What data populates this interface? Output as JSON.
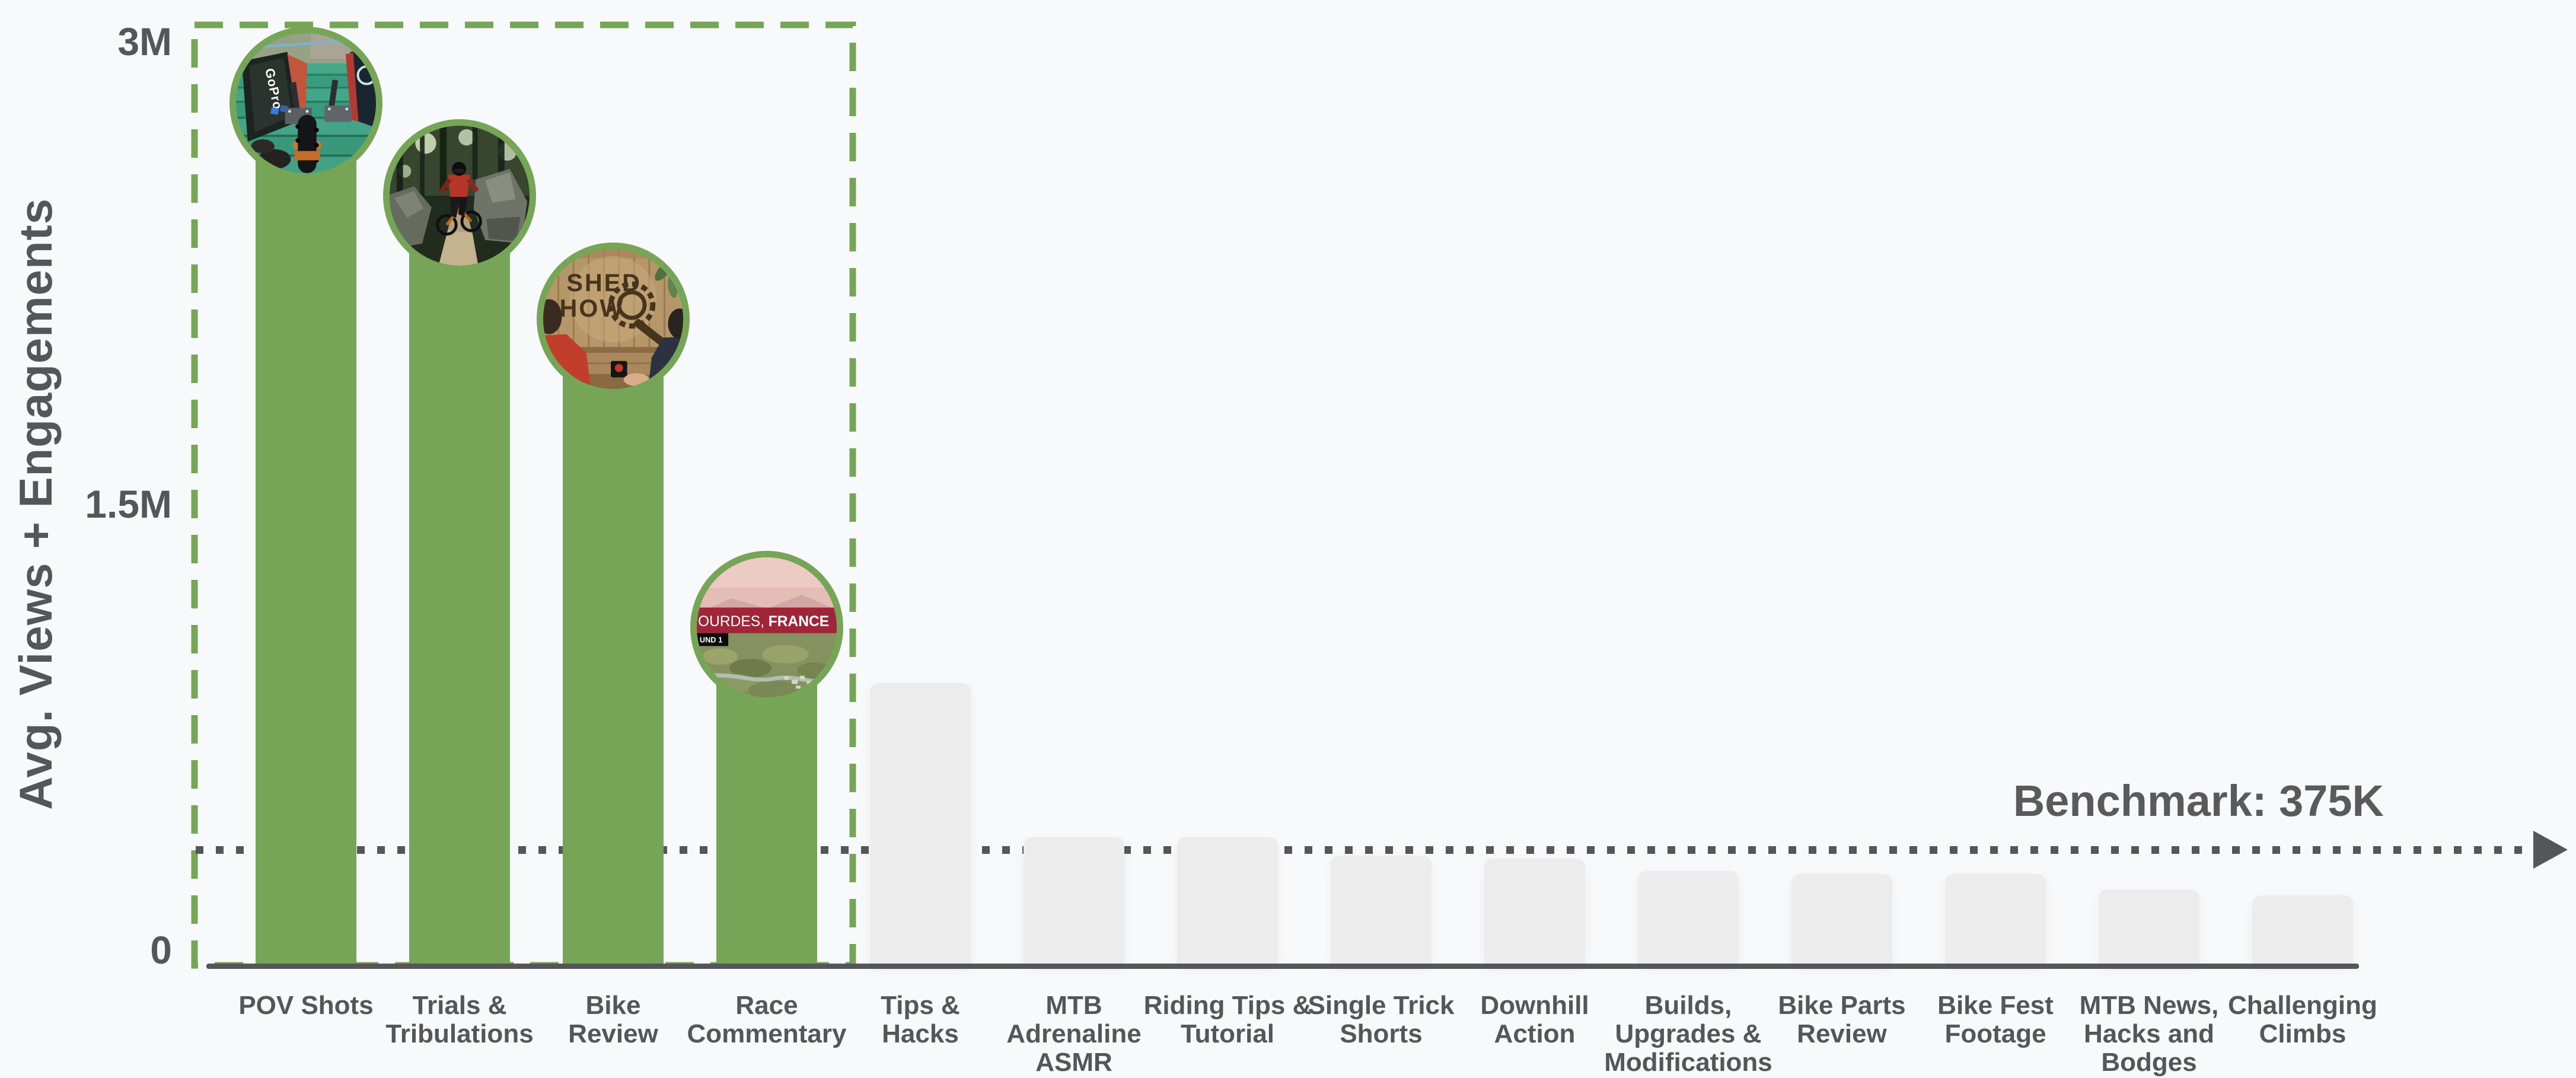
{
  "chart_data": {
    "type": "bar",
    "title": "",
    "xlabel": "",
    "ylabel": "Avg. Views + Engagements",
    "categories": [
      "POV Shots",
      "Trials & Tribulations",
      "Bike Review",
      "Race Commentary",
      "Tips & Hacks",
      "MTB Adrenaline ASMR",
      "Riding Tips & Tutorial",
      "Single Trick Shorts",
      "Downhill Action",
      "Builds, Upgrades & Modifications",
      "Bike Parts Review",
      "Bike Fest Footage",
      "MTB News, Hacks and Bodges",
      "Challenging Climbs"
    ],
    "categories_display": [
      [
        "POV Shots"
      ],
      [
        "Trials &",
        "Tribulations"
      ],
      [
        "Bike",
        "Review"
      ],
      [
        "Race",
        "Commentary"
      ],
      [
        "Tips &",
        "Hacks"
      ],
      [
        "MTB",
        "Adrenaline",
        "ASMR"
      ],
      [
        "Riding Tips &",
        "Tutorial"
      ],
      [
        "Single Trick",
        "Shorts"
      ],
      [
        "Downhill",
        "Action"
      ],
      [
        "Builds,",
        "Upgrades &",
        "Modifications"
      ],
      [
        "Bike Parts",
        "Review"
      ],
      [
        "Bike Fest",
        "Footage"
      ],
      [
        "MTB News,",
        "Hacks and",
        "Bodges"
      ],
      [
        "Challenging",
        "Climbs"
      ]
    ],
    "values": [
      2800000,
      2500000,
      2100000,
      1100000,
      920000,
      420000,
      420000,
      360000,
      350000,
      310000,
      300000,
      300000,
      250000,
      230000
    ],
    "highlight_count": 4,
    "highlighted_categories": [
      "POV Shots",
      "Trials & Tribulations",
      "Bike Review",
      "Race Commentary"
    ],
    "benchmark": {
      "label": "Benchmark: 375K",
      "value": 375000
    },
    "y_ticks": [
      {
        "label": "3M",
        "value": 3000000
      },
      {
        "label": "1.5M",
        "value": 1500000
      },
      {
        "label": "0",
        "value": 0
      }
    ],
    "ylim": [
      0,
      3100000
    ],
    "grid": false,
    "legend": "none",
    "bar_color_highlight": "#76a558",
    "bar_color_default": "#ececec"
  },
  "colors": {
    "background": "#f8f9fa",
    "accent_green": "#76a558",
    "bar_gray": "#ececec",
    "axis_gray": "#55565a",
    "text_gray": "#55565a"
  },
  "thumbnails": {
    "pov": {
      "name": "pov-shots-thumbnail",
      "description": "GoPro POV of green wooden boardwalk ramp with bike tire",
      "sign_text": "GoPro"
    },
    "trials": {
      "name": "trials-tribulations-thumbnail",
      "description": "Mountain biker in red jersey riding rocky forest trail"
    },
    "bike_review": {
      "name": "bike-review-thumbnail",
      "description": "Two hosts in wood-panel studio with Shed Show logo",
      "logo_line1": "SHED",
      "logo_line2": "HOW"
    },
    "race": {
      "name": "race-commentary-thumbnail",
      "description": "Aerial view of Lourdes France with race title banner",
      "banner_left": "OURDES, ",
      "banner_bold": "FRANCE",
      "round_label": "UND 1"
    }
  }
}
